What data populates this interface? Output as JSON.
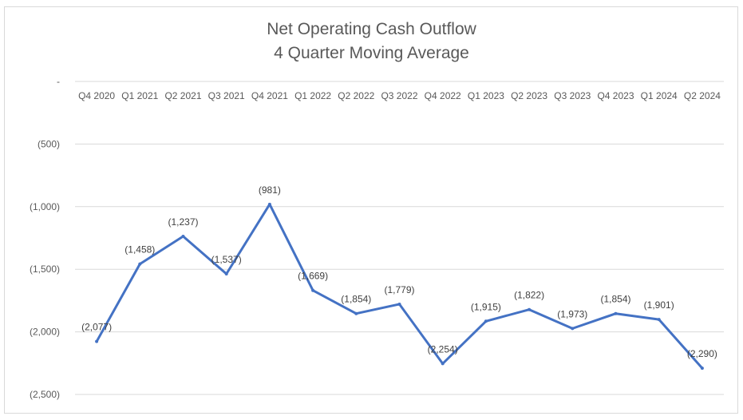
{
  "chart_data": {
    "type": "line",
    "title_line1": "Net Operating Cash Outflow",
    "title_line2": "4 Quarter Moving Average",
    "categories": [
      "Q4 2020",
      "Q1 2021",
      "Q2 2021",
      "Q3 2021",
      "Q4 2021",
      "Q1 2022",
      "Q2 2022",
      "Q3 2022",
      "Q4 2022",
      "Q1 2023",
      "Q2 2023",
      "Q3 2023",
      "Q4 2023",
      "Q1 2024",
      "Q2 2024"
    ],
    "series": [
      {
        "values": [
          -2077,
          -1458,
          -1237,
          -1537,
          -981,
          -1669,
          -1854,
          -1779,
          -2254,
          -1915,
          -1822,
          -1973,
          -1854,
          -1901,
          -2290
        ],
        "labels": [
          "(2,077)",
          "(1,458)",
          "(1,237)",
          "(1,537)",
          "(981)",
          "(1,669)",
          "(1,854)",
          "(1,779)",
          "(2,254)",
          "(1,915)",
          "(1,822)",
          "(1,973)",
          "(1,854)",
          "(1,901)",
          "(2,290)"
        ],
        "color": "#4472c4"
      }
    ],
    "ylim": [
      -2500,
      0
    ],
    "y_ticks": [
      0,
      -500,
      -1000,
      -1500,
      -2000,
      -2500
    ],
    "y_tick_labels": [
      "-",
      "(500)",
      "(1,000)",
      "(1,500)",
      "(2,000)",
      "(2,500)"
    ],
    "grid": true,
    "gridline_color": "#d9d9d9",
    "legend": "none",
    "x_axis_position": "top"
  }
}
